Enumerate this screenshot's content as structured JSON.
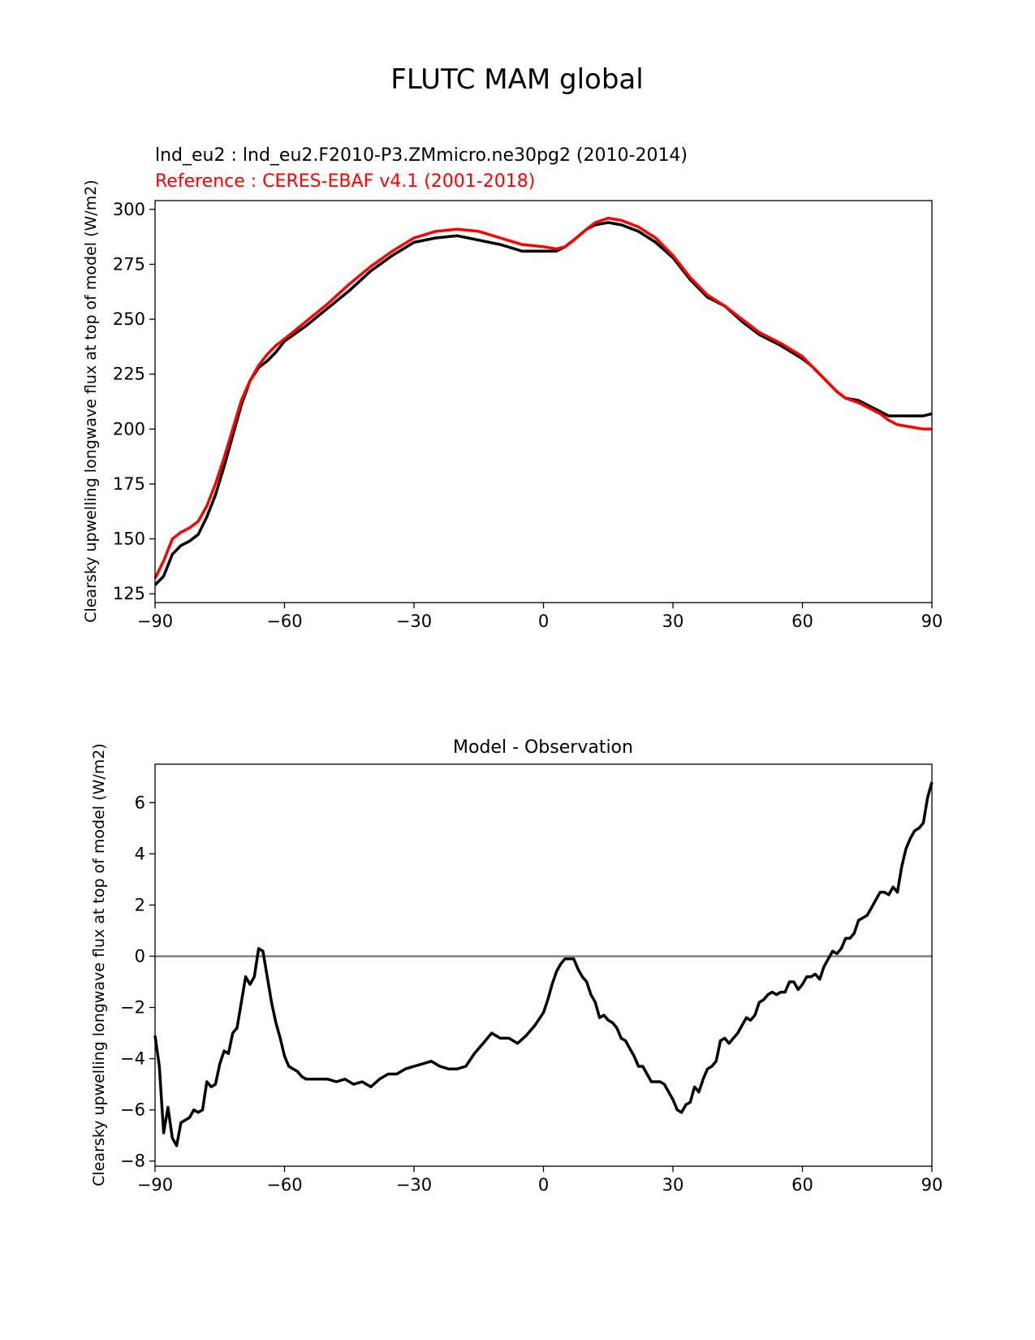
{
  "figure": {
    "suptitle": "FLUTC MAM global"
  },
  "colors": {
    "model": "#000000",
    "reference": "#ff0000",
    "zero_line": "#808080",
    "axes": "#000000"
  },
  "chart_data": [
    {
      "type": "line",
      "name": "climatology",
      "title_lines": [
        {
          "text": "lnd_eu2 : lnd_eu2.F2010-P3.ZMmicro.ne30pg2 (2010-2014)",
          "color": "#000000"
        },
        {
          "text": "Reference : CERES-EBAF v4.1 (2001-2018)",
          "color": "#ff0000"
        }
      ],
      "xlabel": "",
      "ylabel": "Clearsky upwelling longwave flux at top of model (W/m2)",
      "xlim": [
        -90,
        90
      ],
      "ylim": [
        121,
        304
      ],
      "xticks": [
        -90,
        -60,
        -30,
        0,
        30,
        60,
        90
      ],
      "xtick_labels": [
        "−90",
        "−60",
        "−30",
        "0",
        "30",
        "60",
        "90"
      ],
      "yticks": [
        125,
        150,
        175,
        200,
        225,
        250,
        275,
        300
      ],
      "ytick_labels": [
        "125",
        "150",
        "175",
        "200",
        "225",
        "250",
        "275",
        "300"
      ],
      "series": [
        {
          "name": "lnd_eu2",
          "color": "#000000",
          "x": [
            -90,
            -88,
            -86,
            -84,
            -82,
            -80,
            -78,
            -76,
            -74,
            -72,
            -70,
            -68,
            -66,
            -64,
            -62,
            -60,
            -55,
            -50,
            -45,
            -40,
            -35,
            -30,
            -25,
            -20,
            -15,
            -10,
            -5,
            0,
            3,
            5,
            7,
            10,
            12,
            15,
            18,
            22,
            26,
            30,
            34,
            38,
            42,
            46,
            50,
            55,
            60,
            62,
            65,
            68,
            70,
            73,
            75,
            78,
            80,
            82,
            85,
            88,
            90
          ],
          "values": [
            129,
            133,
            143,
            147,
            149,
            152,
            160,
            170,
            183,
            197,
            211,
            222,
            228,
            231,
            235,
            240,
            247,
            255,
            263,
            272,
            279,
            285,
            287,
            288,
            286,
            284,
            281,
            281,
            281,
            283,
            286,
            291,
            293,
            294,
            293,
            290,
            285,
            278,
            268,
            260,
            256,
            249,
            243,
            238,
            232,
            229,
            223,
            217,
            214,
            213,
            211,
            208,
            206,
            206,
            206,
            206,
            207
          ]
        },
        {
          "name": "Reference",
          "color": "#ff0000",
          "x": [
            -90,
            -88,
            -86,
            -84,
            -82,
            -80,
            -78,
            -76,
            -74,
            -72,
            -70,
            -68,
            -66,
            -64,
            -62,
            -60,
            -55,
            -50,
            -45,
            -40,
            -35,
            -30,
            -25,
            -20,
            -15,
            -10,
            -5,
            0,
            3,
            5,
            7,
            10,
            12,
            15,
            18,
            22,
            26,
            30,
            34,
            38,
            42,
            46,
            50,
            55,
            60,
            62,
            65,
            68,
            70,
            73,
            75,
            78,
            80,
            82,
            85,
            88,
            90
          ],
          "values": [
            132,
            140,
            150,
            153,
            155,
            158,
            165,
            175,
            187,
            200,
            213,
            222,
            229,
            234,
            238,
            241,
            249,
            257,
            266,
            274,
            281,
            287,
            290,
            291,
            290,
            287,
            284,
            283,
            282,
            283,
            286,
            291,
            294,
            296,
            295,
            292,
            287,
            279,
            269,
            261,
            256,
            250,
            244,
            239,
            233,
            229,
            223,
            217,
            214,
            212,
            210,
            207,
            204,
            202,
            201,
            200,
            200
          ]
        }
      ]
    },
    {
      "type": "line",
      "name": "difference",
      "title": "Model - Observation",
      "xlabel": "",
      "ylabel": "Clearsky upwelling longwave flux at top of model (W/m2)",
      "xlim": [
        -90,
        90
      ],
      "ylim": [
        -8.2,
        7.5
      ],
      "xticks": [
        -90,
        -60,
        -30,
        0,
        30,
        60,
        90
      ],
      "xtick_labels": [
        "−90",
        "−60",
        "−30",
        "0",
        "30",
        "60",
        "90"
      ],
      "yticks": [
        -8,
        -6,
        -4,
        -2,
        0,
        2,
        4,
        6
      ],
      "ytick_labels": [
        "−8",
        "−6",
        "−4",
        "−2",
        "0",
        "2",
        "4",
        "6"
      ],
      "hline": 0,
      "series": [
        {
          "name": "Model - Observation",
          "color": "#000000",
          "x": [
            -90,
            -89,
            -88,
            -87,
            -86,
            -85,
            -84,
            -83,
            -82,
            -81,
            -80,
            -79,
            -78,
            -77,
            -76,
            -75,
            -74,
            -73,
            -72,
            -71,
            -70,
            -69,
            -68,
            -67,
            -66,
            -65,
            -64,
            -63,
            -62,
            -61,
            -60,
            -59,
            -58,
            -57,
            -56,
            -55,
            -54,
            -52,
            -50,
            -48,
            -46,
            -44,
            -42,
            -40,
            -38,
            -36,
            -34,
            -32,
            -30,
            -28,
            -26,
            -24,
            -22,
            -20,
            -18,
            -16,
            -14,
            -12,
            -10,
            -8,
            -6,
            -4,
            -2,
            0,
            1,
            2,
            3,
            4,
            5,
            6,
            7,
            8,
            9,
            10,
            11,
            12,
            13,
            14,
            15,
            16,
            17,
            18,
            19,
            20,
            21,
            22,
            23,
            24,
            25,
            26,
            27,
            28,
            29,
            30,
            31,
            32,
            33,
            34,
            35,
            36,
            37,
            38,
            39,
            40,
            41,
            42,
            43,
            44,
            45,
            46,
            47,
            48,
            49,
            50,
            51,
            52,
            53,
            54,
            55,
            56,
            57,
            58,
            59,
            60,
            61,
            62,
            63,
            64,
            65,
            66,
            67,
            68,
            69,
            70,
            71,
            72,
            73,
            74,
            75,
            76,
            77,
            78,
            79,
            80,
            81,
            82,
            83,
            84,
            85,
            86,
            87,
            88,
            89,
            90
          ],
          "values": [
            -3.1,
            -4.3,
            -6.9,
            -5.9,
            -7.1,
            -7.4,
            -6.5,
            -6.4,
            -6.3,
            -6.0,
            -6.1,
            -6.0,
            -4.9,
            -5.1,
            -5.0,
            -4.2,
            -3.7,
            -3.8,
            -3.0,
            -2.8,
            -1.8,
            -0.8,
            -1.1,
            -0.8,
            0.3,
            0.2,
            -0.8,
            -1.8,
            -2.6,
            -3.2,
            -3.9,
            -4.3,
            -4.4,
            -4.5,
            -4.7,
            -4.8,
            -4.8,
            -4.8,
            -4.8,
            -4.9,
            -4.8,
            -5.0,
            -4.9,
            -5.1,
            -4.8,
            -4.6,
            -4.6,
            -4.4,
            -4.3,
            -4.2,
            -4.1,
            -4.3,
            -4.4,
            -4.4,
            -4.3,
            -3.8,
            -3.4,
            -3.0,
            -3.2,
            -3.2,
            -3.4,
            -3.1,
            -2.7,
            -2.2,
            -1.7,
            -1.1,
            -0.6,
            -0.3,
            -0.1,
            -0.1,
            -0.1,
            -0.5,
            -0.8,
            -1.0,
            -1.5,
            -1.8,
            -2.4,
            -2.3,
            -2.5,
            -2.6,
            -2.8,
            -3.2,
            -3.3,
            -3.6,
            -3.9,
            -4.3,
            -4.3,
            -4.6,
            -4.9,
            -4.9,
            -4.9,
            -5.0,
            -5.3,
            -5.6,
            -6.0,
            -6.1,
            -5.8,
            -5.7,
            -5.1,
            -5.3,
            -4.8,
            -4.4,
            -4.3,
            -4.1,
            -3.3,
            -3.2,
            -3.4,
            -3.2,
            -3.0,
            -2.7,
            -2.4,
            -2.5,
            -2.3,
            -1.8,
            -1.7,
            -1.5,
            -1.4,
            -1.5,
            -1.4,
            -1.4,
            -1.0,
            -1.0,
            -1.3,
            -1.1,
            -0.8,
            -0.8,
            -0.7,
            -0.9,
            -0.4,
            -0.1,
            0.2,
            0.1,
            0.3,
            0.7,
            0.7,
            0.9,
            1.4,
            1.5,
            1.6,
            1.9,
            2.2,
            2.5,
            2.5,
            2.4,
            2.7,
            2.5,
            3.5,
            4.2,
            4.6,
            4.9,
            5.0,
            5.2,
            6.2,
            6.8
          ]
        }
      ]
    }
  ]
}
